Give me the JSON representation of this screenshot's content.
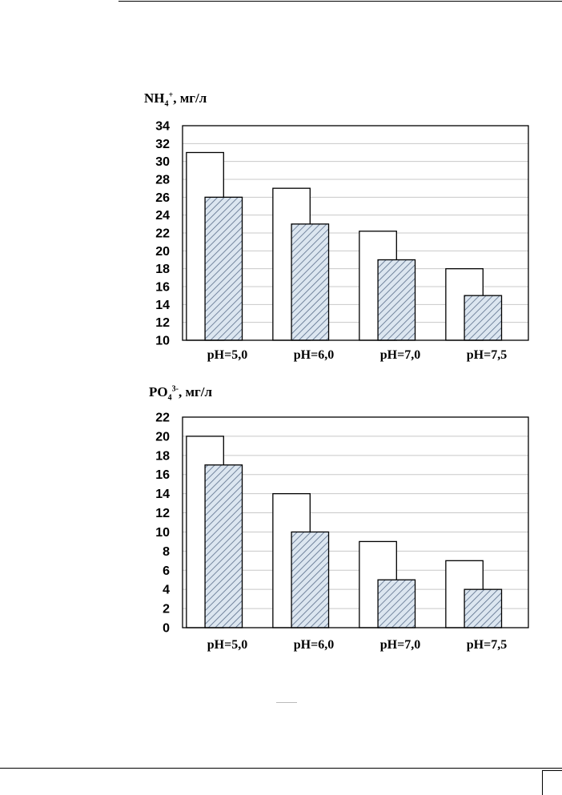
{
  "chart_data": [
    {
      "type": "bar",
      "title": "",
      "ylabel_main": "NH",
      "ylabel_sub": "4",
      "ylabel_sup": "+",
      "ylabel_unit": ", мг/л",
      "xlabel": "",
      "categories": [
        "pH=5,0",
        "pH=6,0",
        "pH=7,0",
        "pH=7,5"
      ],
      "series": [
        {
          "values": [
            31,
            27,
            22.2,
            18
          ],
          "color": "#ffffff",
          "pattern": "none"
        },
        {
          "values": [
            26,
            23,
            19,
            15
          ],
          "color": "#dce6f0",
          "pattern": "hatch"
        }
      ],
      "ylim": [
        10,
        34
      ],
      "yticks": [
        10,
        12,
        14,
        16,
        18,
        20,
        22,
        24,
        26,
        28,
        30,
        32,
        34
      ],
      "grid": true
    },
    {
      "type": "bar",
      "title": "",
      "ylabel_main": "PO",
      "ylabel_sub": "4",
      "ylabel_sup": "3-",
      "ylabel_unit": ", мг/л",
      "xlabel": "",
      "categories": [
        "pH=5,0",
        "pH=6,0",
        "pH=7,0",
        "pH=7,5"
      ],
      "series": [
        {
          "values": [
            20,
            14,
            9,
            7
          ],
          "color": "#ffffff",
          "pattern": "none"
        },
        {
          "values": [
            17,
            10,
            5,
            4
          ],
          "color": "#dce6f0",
          "pattern": "hatch"
        }
      ],
      "ylim": [
        0,
        22
      ],
      "yticks": [
        0,
        2,
        4,
        6,
        8,
        10,
        12,
        14,
        16,
        18,
        20,
        22
      ],
      "grid": true
    }
  ]
}
